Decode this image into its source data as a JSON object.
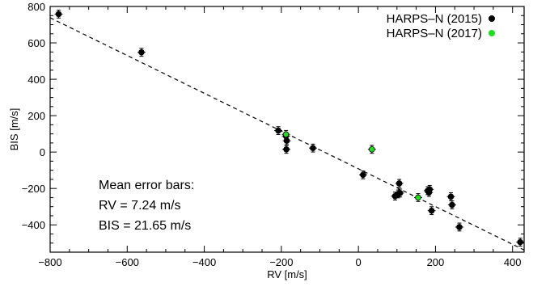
{
  "chart_data": {
    "type": "scatter",
    "xlabel": "RV [m/s]",
    "ylabel": "BIS [m/s]",
    "xlim": [
      -800,
      430
    ],
    "ylim": [
      -550,
      800
    ],
    "xticks": [
      -800,
      -600,
      -400,
      -200,
      0,
      200,
      400
    ],
    "yticks": [
      -400,
      -200,
      0,
      200,
      400,
      600,
      800
    ],
    "grid": false,
    "legend_position": "top-right",
    "series": [
      {
        "name": "HARPS–N (2015)",
        "color": "#000000",
        "points": [
          {
            "x": -778,
            "y": 758
          },
          {
            "x": -563,
            "y": 548
          },
          {
            "x": -208,
            "y": 118
          },
          {
            "x": -188,
            "y": 88
          },
          {
            "x": -186,
            "y": 62
          },
          {
            "x": -187,
            "y": 15
          },
          {
            "x": -118,
            "y": 22
          },
          {
            "x": 12,
            "y": -125
          },
          {
            "x": 95,
            "y": -242
          },
          {
            "x": 103,
            "y": -230
          },
          {
            "x": 106,
            "y": -172
          },
          {
            "x": 108,
            "y": -225
          },
          {
            "x": 180,
            "y": -212
          },
          {
            "x": 183,
            "y": -222
          },
          {
            "x": 185,
            "y": -205
          },
          {
            "x": 190,
            "y": -322
          },
          {
            "x": 240,
            "y": -245
          },
          {
            "x": 243,
            "y": -290
          },
          {
            "x": 262,
            "y": -412
          },
          {
            "x": 420,
            "y": -495
          }
        ]
      },
      {
        "name": "HARPS–N (2017)",
        "color": "#22dd22",
        "points": [
          {
            "x": -188,
            "y": 97
          },
          {
            "x": 35,
            "y": 15
          },
          {
            "x": 155,
            "y": -250
          }
        ]
      }
    ],
    "fit_line": {
      "style": "dashed",
      "x": [
        -800,
        430
      ],
      "y": [
        738,
        -538
      ]
    },
    "annotation": [
      "Mean error bars:",
      "RV = 7.24 m/s",
      "BIS = 21.65 m/s"
    ]
  }
}
